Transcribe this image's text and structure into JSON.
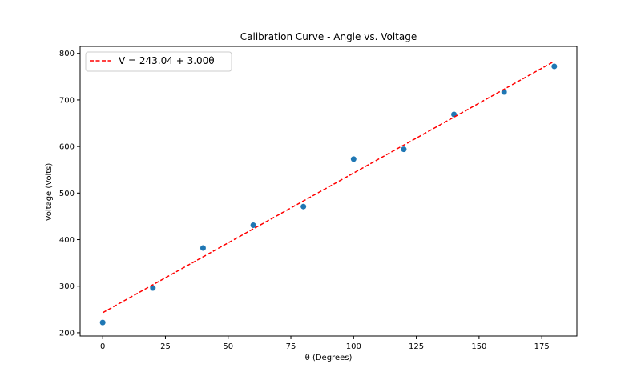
{
  "chart_data": {
    "type": "scatter",
    "title": "Calibration Curve - Angle vs. Voltage",
    "xlabel": "θ (Degrees)",
    "ylabel": "Voltage (Volts)",
    "xlim": [
      -9,
      189
    ],
    "ylim": [
      193,
      815
    ],
    "xticks": [
      0,
      25,
      50,
      75,
      100,
      125,
      150,
      175
    ],
    "yticks": [
      200,
      300,
      400,
      500,
      600,
      700,
      800
    ],
    "grid": false,
    "legend_position": "top-left",
    "series": [
      {
        "kind": "points",
        "color": "#1f77b4",
        "x": [
          0,
          20,
          40,
          60,
          80,
          100,
          120,
          140,
          160,
          180
        ],
        "y": [
          222,
          296,
          382,
          431,
          471,
          573,
          594,
          669,
          717,
          772
        ]
      },
      {
        "kind": "line",
        "name": "V = 243.04 + 3.00θ",
        "color": "#ff0000",
        "style": "dashed",
        "intercept": 243.04,
        "slope": 3.0,
        "x_range": [
          0,
          180
        ]
      }
    ]
  }
}
